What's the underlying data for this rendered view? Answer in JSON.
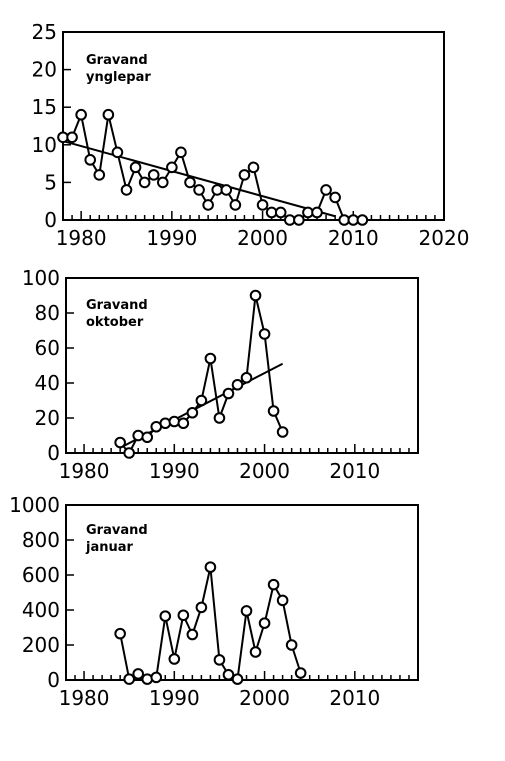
{
  "chart_data": [
    {
      "type": "line",
      "title": "Gravand",
      "subtitle": "ynglepar",
      "xlim": [
        1978,
        2020
      ],
      "ylim": [
        0,
        25
      ],
      "x_ticks": [
        1980,
        1990,
        2000,
        2010,
        2020
      ],
      "y_ticks": [
        0,
        5,
        10,
        15,
        20,
        25
      ],
      "grid": false,
      "series": [
        {
          "x": [
            1978,
            1979,
            1980,
            1981,
            1982,
            1983,
            1984,
            1985,
            1986,
            1987,
            1988,
            1989,
            1990,
            1991,
            1992,
            1993,
            1994,
            1995,
            1996,
            1997,
            1998,
            1999,
            2000,
            2001,
            2002,
            2003,
            2004,
            2005,
            2006,
            2007,
            2008,
            2009,
            2010,
            2011
          ],
          "y": [
            11,
            11,
            14,
            8,
            6,
            14,
            9,
            4,
            7,
            5,
            6,
            5,
            7,
            9,
            5,
            4,
            2,
            4,
            4,
            2,
            6,
            7,
            2,
            1,
            1,
            0,
            0,
            1,
            1,
            4,
            3,
            0,
            0,
            0
          ]
        }
      ],
      "trend_line": {
        "x": [
          1978,
          2008
        ],
        "y": [
          10.5,
          0.5
        ]
      }
    },
    {
      "type": "line",
      "title": "Gravand",
      "subtitle": "oktober",
      "xlim": [
        1978,
        2017
      ],
      "ylim": [
        0,
        100
      ],
      "x_ticks": [
        1980,
        1990,
        2000,
        2010
      ],
      "y_ticks": [
        0,
        20,
        40,
        60,
        80,
        100
      ],
      "grid": false,
      "series": [
        {
          "x": [
            1984,
            1985,
            1986,
            1987,
            1988,
            1989,
            1990,
            1991,
            1992,
            1993,
            1994,
            1995,
            1996,
            1997,
            1998,
            1999,
            2000,
            2001,
            2002
          ],
          "y": [
            6,
            0,
            10,
            9,
            15,
            17,
            18,
            17,
            23,
            30,
            54,
            20,
            34,
            39,
            43,
            90,
            68,
            24,
            12
          ]
        }
      ],
      "trend_line": {
        "x": [
          1984,
          2002
        ],
        "y": [
          3,
          51
        ]
      }
    },
    {
      "type": "line",
      "title": "Gravand",
      "subtitle": "januar",
      "xlim": [
        1978,
        2017
      ],
      "ylim": [
        0,
        1000
      ],
      "x_ticks": [
        1980,
        1990,
        2000,
        2010
      ],
      "y_ticks": [
        0,
        200,
        400,
        600,
        800,
        1000
      ],
      "grid": false,
      "series": [
        {
          "x": [
            1984,
            1985,
            1986,
            1987,
            1988,
            1989,
            1990,
            1991,
            1992,
            1993,
            1994,
            1995,
            1996,
            1997,
            1998,
            1999,
            2000,
            2001,
            2002,
            2003,
            2004
          ],
          "y": [
            265,
            5,
            35,
            5,
            15,
            365,
            120,
            370,
            260,
            415,
            645,
            115,
            30,
            5,
            395,
            160,
            325,
            545,
            455,
            200,
            40
          ]
        }
      ]
    }
  ]
}
